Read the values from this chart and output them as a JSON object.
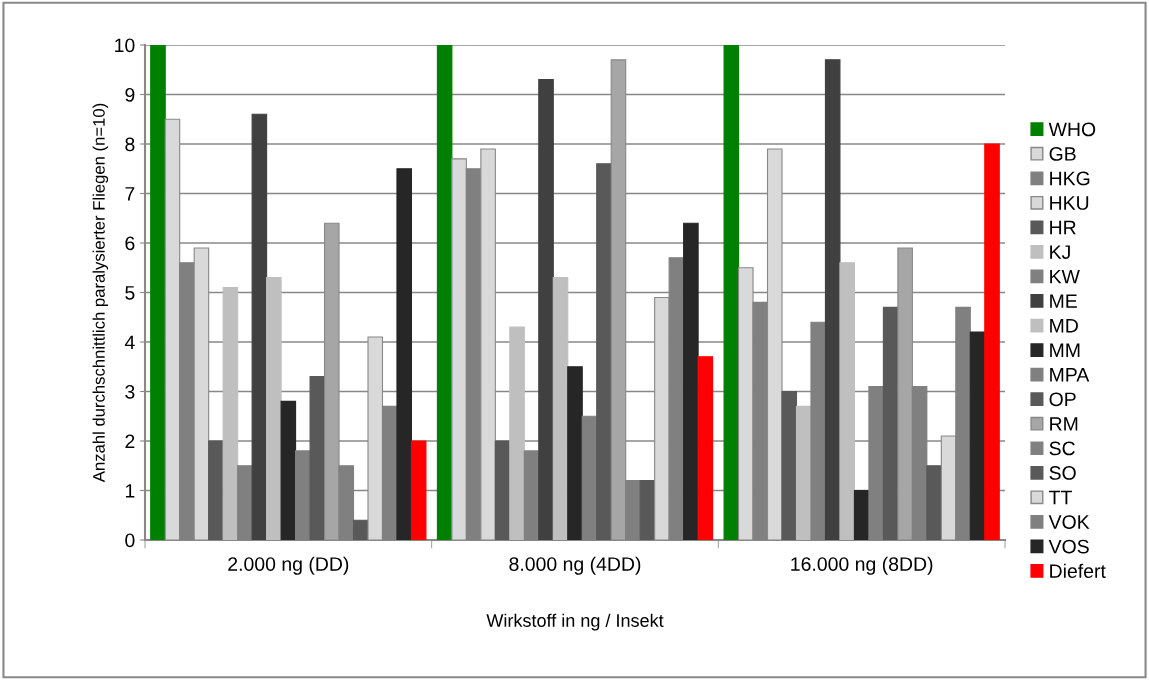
{
  "chart_data": {
    "type": "bar",
    "xlabel": "Wirkstoff in ng / Insekt",
    "ylabel": "Anzahl durchschnittlich paralysierter Fliegen (n=10)",
    "categories": [
      "2.000 ng (DD)",
      "8.000 ng (4DD)",
      "16.000 ng (8DD)"
    ],
    "ylim": [
      0,
      10
    ],
    "yticks": [
      0,
      1,
      2,
      3,
      4,
      5,
      6,
      7,
      8,
      9,
      10
    ],
    "grid": "y",
    "legend": "right",
    "series": [
      {
        "name": "WHO",
        "color": "#008000",
        "values": [
          10,
          10,
          10
        ]
      },
      {
        "name": "GB",
        "color": "#d9d9d9",
        "values": [
          8.5,
          7.7,
          5.5
        ]
      },
      {
        "name": "HKG",
        "color": "#808080",
        "values": [
          5.6,
          7.5,
          4.8
        ]
      },
      {
        "name": "HKU",
        "color": "#d9d9d9",
        "values": [
          5.9,
          7.9,
          7.9
        ]
      },
      {
        "name": "HR",
        "color": "#595959",
        "values": [
          2,
          2,
          3
        ]
      },
      {
        "name": "KJ",
        "color": "#bfbfbf",
        "values": [
          5.1,
          4.3,
          2.7
        ]
      },
      {
        "name": "KW",
        "color": "#808080",
        "values": [
          1.5,
          1.8,
          4.4
        ]
      },
      {
        "name": "ME",
        "color": "#404040",
        "values": [
          8.6,
          9.3,
          9.7
        ]
      },
      {
        "name": "MD",
        "color": "#bfbfbf",
        "values": [
          5.3,
          5.3,
          5.6
        ]
      },
      {
        "name": "MM",
        "color": "#262626",
        "values": [
          2.8,
          3.5,
          1.0
        ]
      },
      {
        "name": "MPA",
        "color": "#808080",
        "values": [
          1.8,
          2.5,
          3.1
        ]
      },
      {
        "name": "OP",
        "color": "#595959",
        "values": [
          3.3,
          7.6,
          4.7
        ]
      },
      {
        "name": "RM",
        "color": "#a6a6a6",
        "values": [
          6.4,
          9.7,
          5.9
        ]
      },
      {
        "name": "SC",
        "color": "#808080",
        "values": [
          1.5,
          1.2,
          3.1
        ]
      },
      {
        "name": "SO",
        "color": "#595959",
        "values": [
          0.4,
          1.2,
          1.5
        ]
      },
      {
        "name": "TT",
        "color": "#d9d9d9",
        "values": [
          4.1,
          4.9,
          2.1
        ]
      },
      {
        "name": "VOK",
        "color": "#808080",
        "values": [
          2.7,
          5.7,
          4.7
        ]
      },
      {
        "name": "VOS",
        "color": "#262626",
        "values": [
          7.5,
          6.4,
          4.2
        ]
      },
      {
        "name": "Diefert",
        "color": "#ff0000",
        "values": [
          2,
          3.7,
          8
        ]
      }
    ]
  }
}
